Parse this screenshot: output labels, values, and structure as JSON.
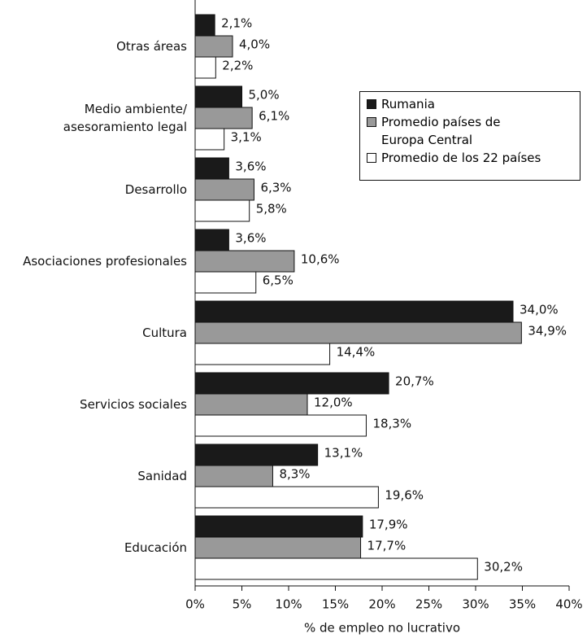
{
  "chart_data": {
    "type": "bar",
    "orientation": "horizontal",
    "categories": [
      "Otras áreas",
      "Medio ambiente/\nasesoramiento legal",
      "Desarrollo",
      "Asociaciones profesionales",
      "Cultura",
      "Servicios sociales",
      "Sanidad",
      "Educación"
    ],
    "series": [
      {
        "name": "Rumania",
        "color": "#1a1a1a",
        "values": [
          2.1,
          5.0,
          3.6,
          3.6,
          34.0,
          20.7,
          13.1,
          17.9
        ],
        "value_labels": [
          "2,1%",
          "5,0%",
          "3,6%",
          "3,6%",
          "34,0%",
          "20,7%",
          "13,1%",
          "17,9%"
        ]
      },
      {
        "name": "Promedio países de\nEuropa Central",
        "color": "#999999",
        "values": [
          4.0,
          6.1,
          6.3,
          10.6,
          34.9,
          12.0,
          8.3,
          17.7
        ],
        "value_labels": [
          "4,0%",
          "6,1%",
          "6,3%",
          "10,6%",
          "34,9%",
          "12,0%",
          "8,3%",
          "17,7%"
        ]
      },
      {
        "name": "Promedio de los 22 países",
        "color": "#ffffff",
        "values": [
          2.2,
          3.1,
          5.8,
          6.5,
          14.4,
          18.3,
          19.6,
          30.2
        ],
        "value_labels": [
          "2,2%",
          "3,1%",
          "5,8%",
          "6,5%",
          "14,4%",
          "18,3%",
          "19,6%",
          "30,2%"
        ]
      }
    ],
    "x_label": "% de empleo no lucrativo",
    "xlim": [
      0,
      40
    ],
    "xticks": [
      {
        "value": 0,
        "label": "0%"
      },
      {
        "value": 5,
        "label": "5%"
      },
      {
        "value": 10,
        "label": "10%"
      },
      {
        "value": 15,
        "label": "15%"
      },
      {
        "value": 20,
        "label": "20%"
      },
      {
        "value": 25,
        "label": "25%"
      },
      {
        "value": 30,
        "label": "30%"
      },
      {
        "value": 35,
        "label": "35%"
      },
      {
        "value": 40,
        "label": "40%"
      }
    ],
    "grid": false,
    "legend": "upper right"
  }
}
